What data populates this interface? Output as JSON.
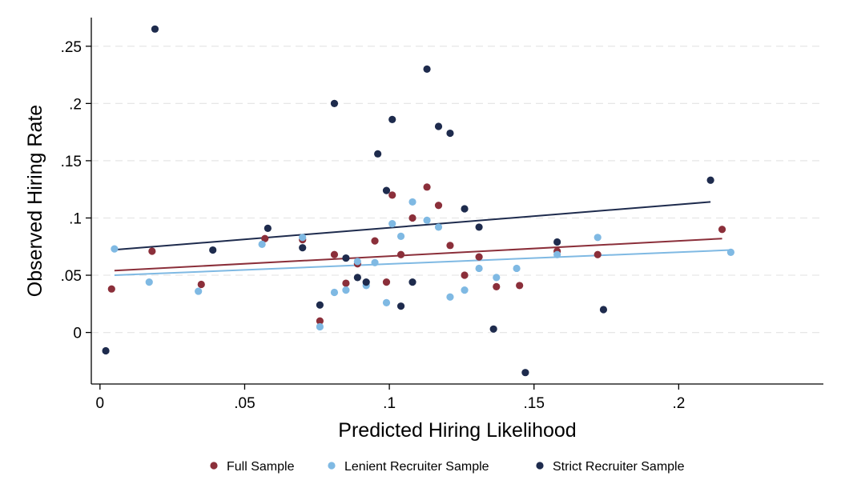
{
  "chart_data": {
    "type": "scatter",
    "title": "",
    "xlabel": "Predicted Hiring Likelihood",
    "ylabel": "Observed Hiring Rate",
    "xlim": [
      -0.003,
      0.25
    ],
    "ylim": [
      -0.045,
      0.275
    ],
    "x_ticks": [
      0,
      0.05,
      0.1,
      0.15,
      0.2
    ],
    "x_tick_labels": [
      "0",
      ".05",
      ".1",
      ".15",
      ".2"
    ],
    "y_ticks": [
      0,
      0.05,
      0.1,
      0.15,
      0.2,
      0.25
    ],
    "y_tick_labels": [
      "0",
      ".05",
      ".1",
      ".15",
      ".2",
      ".25"
    ],
    "grid": true,
    "legend_position": "bottom",
    "series": [
      {
        "name": "Full Sample",
        "color": "#8b2f3a",
        "points": [
          [
            0.004,
            0.038
          ],
          [
            0.018,
            0.071
          ],
          [
            0.035,
            0.042
          ],
          [
            0.057,
            0.082
          ],
          [
            0.07,
            0.081
          ],
          [
            0.076,
            0.01
          ],
          [
            0.081,
            0.068
          ],
          [
            0.085,
            0.043
          ],
          [
            0.089,
            0.06
          ],
          [
            0.095,
            0.08
          ],
          [
            0.099,
            0.044
          ],
          [
            0.101,
            0.12
          ],
          [
            0.104,
            0.068
          ],
          [
            0.108,
            0.1
          ],
          [
            0.113,
            0.127
          ],
          [
            0.117,
            0.111
          ],
          [
            0.121,
            0.076
          ],
          [
            0.126,
            0.05
          ],
          [
            0.131,
            0.066
          ],
          [
            0.137,
            0.04
          ],
          [
            0.145,
            0.041
          ],
          [
            0.158,
            0.071
          ],
          [
            0.172,
            0.068
          ],
          [
            0.215,
            0.09
          ]
        ],
        "fit": [
          [
            0.005,
            0.054
          ],
          [
            0.215,
            0.082
          ]
        ]
      },
      {
        "name": "Lenient Recruiter Sample",
        "color": "#7fb9e3",
        "points": [
          [
            0.005,
            0.073
          ],
          [
            0.017,
            0.044
          ],
          [
            0.034,
            0.036
          ],
          [
            0.056,
            0.077
          ],
          [
            0.07,
            0.083
          ],
          [
            0.076,
            0.005
          ],
          [
            0.081,
            0.035
          ],
          [
            0.085,
            0.037
          ],
          [
            0.089,
            0.062
          ],
          [
            0.092,
            0.041
          ],
          [
            0.095,
            0.061
          ],
          [
            0.099,
            0.026
          ],
          [
            0.101,
            0.095
          ],
          [
            0.104,
            0.084
          ],
          [
            0.108,
            0.114
          ],
          [
            0.113,
            0.098
          ],
          [
            0.117,
            0.092
          ],
          [
            0.121,
            0.031
          ],
          [
            0.126,
            0.037
          ],
          [
            0.131,
            0.056
          ],
          [
            0.137,
            0.048
          ],
          [
            0.144,
            0.056
          ],
          [
            0.158,
            0.068
          ],
          [
            0.172,
            0.083
          ],
          [
            0.218,
            0.07
          ]
        ],
        "fit": [
          [
            0.005,
            0.05
          ],
          [
            0.218,
            0.072
          ]
        ]
      },
      {
        "name": "Strict Recruiter Sample",
        "color": "#1e2b4d",
        "points": [
          [
            0.002,
            -0.016
          ],
          [
            0.019,
            0.265
          ],
          [
            0.039,
            0.072
          ],
          [
            0.058,
            0.091
          ],
          [
            0.07,
            0.074
          ],
          [
            0.076,
            0.024
          ],
          [
            0.081,
            0.2
          ],
          [
            0.085,
            0.065
          ],
          [
            0.089,
            0.048
          ],
          [
            0.092,
            0.044
          ],
          [
            0.096,
            0.156
          ],
          [
            0.099,
            0.124
          ],
          [
            0.101,
            0.186
          ],
          [
            0.104,
            0.023
          ],
          [
            0.108,
            0.044
          ],
          [
            0.113,
            0.23
          ],
          [
            0.117,
            0.18
          ],
          [
            0.121,
            0.174
          ],
          [
            0.126,
            0.108
          ],
          [
            0.131,
            0.092
          ],
          [
            0.136,
            0.003
          ],
          [
            0.147,
            -0.035
          ],
          [
            0.158,
            0.079
          ],
          [
            0.174,
            0.02
          ],
          [
            0.211,
            0.133
          ]
        ],
        "fit": [
          [
            0.004,
            0.072
          ],
          [
            0.211,
            0.114
          ]
        ]
      }
    ]
  }
}
